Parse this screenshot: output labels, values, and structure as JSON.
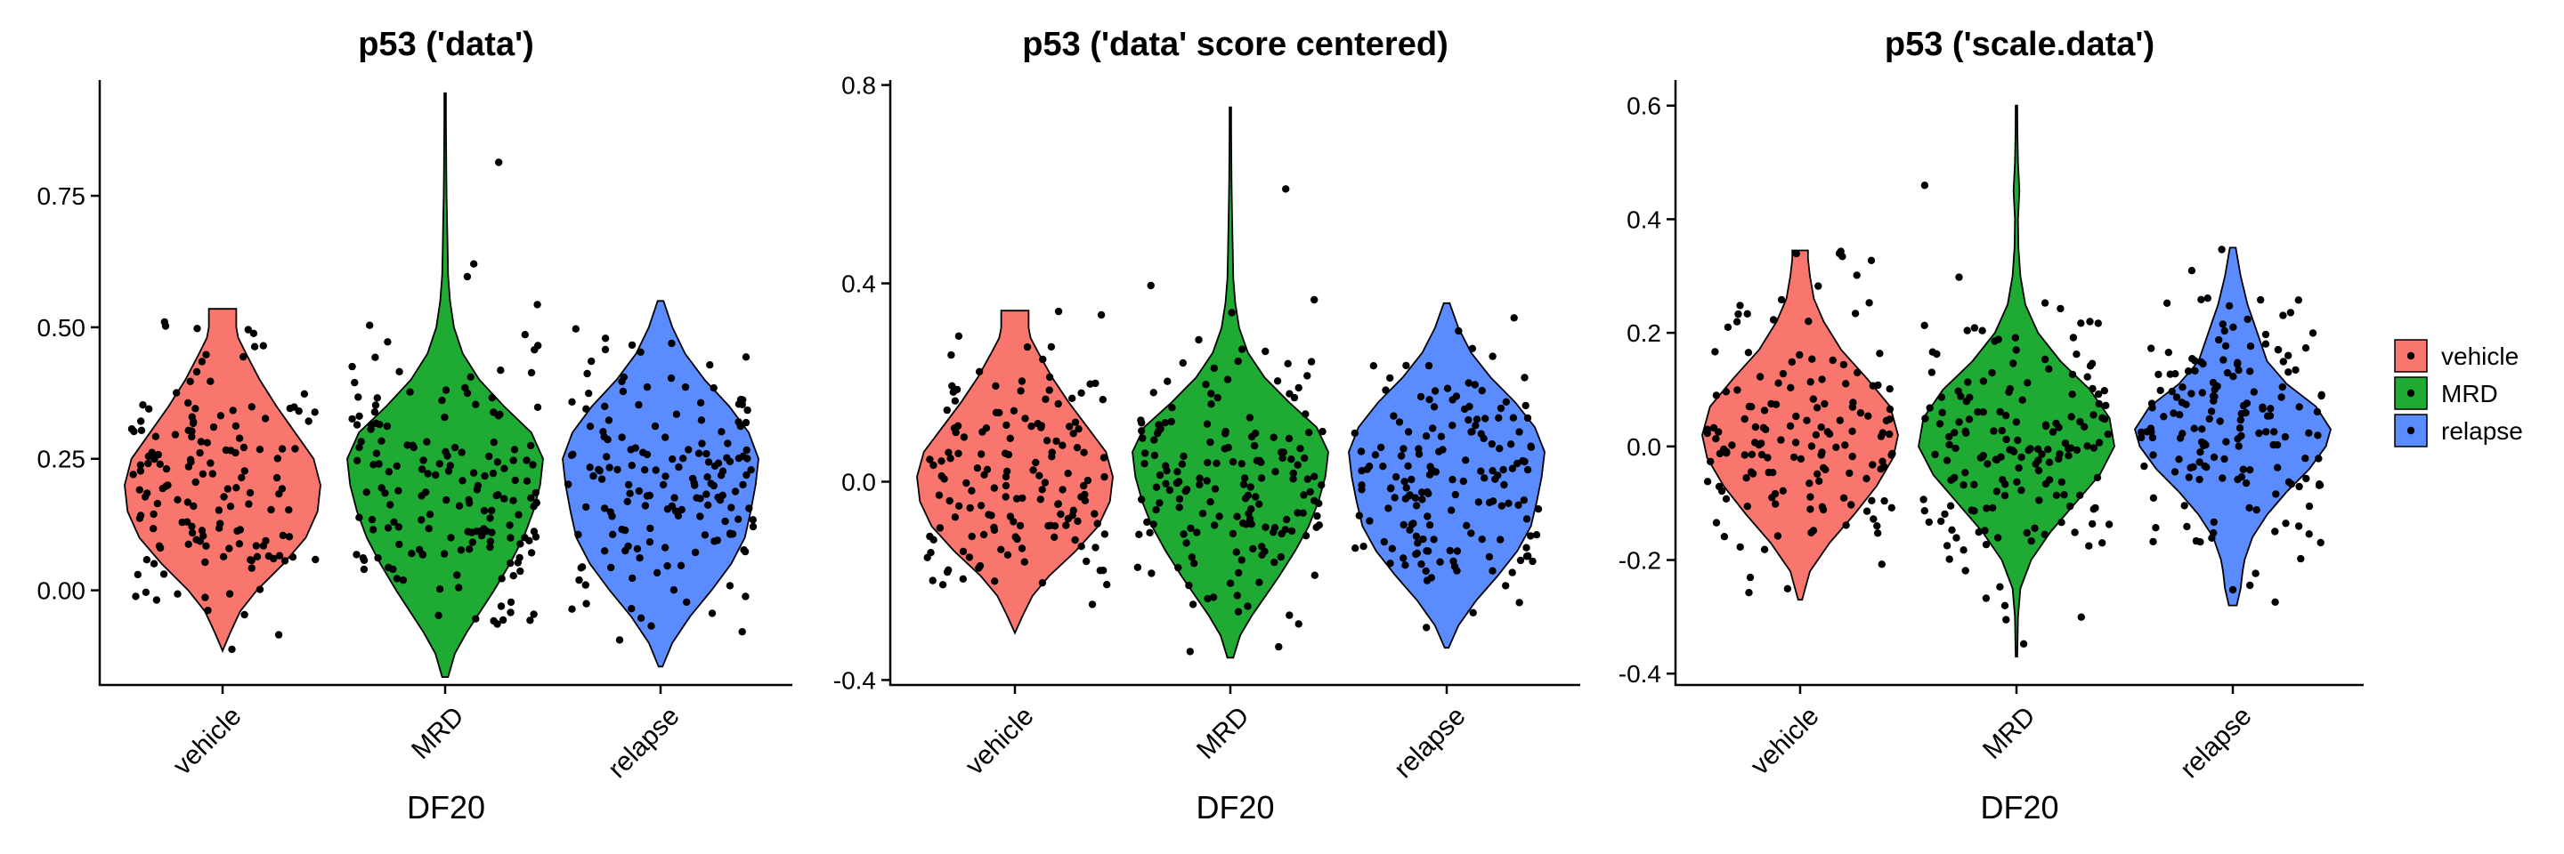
{
  "chart_data": [
    {
      "type": "violin",
      "title": "p53 ('data')",
      "xlabel": "DF20",
      "ylabel": "",
      "categories": [
        "vehicle",
        "MRD",
        "relapse"
      ],
      "colors": [
        "#F8766D",
        "#1FAA33",
        "#5B8CFF"
      ],
      "ylim": [
        -0.18,
        0.97
      ],
      "yticks": [
        0.0,
        0.25,
        0.5,
        0.75
      ],
      "ytick_labels": [
        "0.00",
        "0.25",
        "0.50",
        "0.75"
      ],
      "groups": [
        {
          "name": "vehicle",
          "min": -0.115,
          "max": 0.535,
          "n_points": 150,
          "density": [
            [
              -0.115,
              0.0
            ],
            [
              -0.08,
              0.08
            ],
            [
              -0.04,
              0.18
            ],
            [
              0.0,
              0.35
            ],
            [
              0.05,
              0.62
            ],
            [
              0.1,
              0.85
            ],
            [
              0.15,
              0.97
            ],
            [
              0.2,
              1.0
            ],
            [
              0.25,
              0.93
            ],
            [
              0.3,
              0.74
            ],
            [
              0.35,
              0.55
            ],
            [
              0.4,
              0.38
            ],
            [
              0.45,
              0.24
            ],
            [
              0.48,
              0.16
            ],
            [
              0.5,
              0.14
            ],
            [
              0.52,
              0.14
            ],
            [
              0.535,
              0.14
            ]
          ]
        },
        {
          "name": "MRD",
          "min": -0.165,
          "max": 0.945,
          "n_points": 170,
          "density": [
            [
              -0.165,
              0.03
            ],
            [
              -0.12,
              0.1
            ],
            [
              -0.08,
              0.22
            ],
            [
              -0.04,
              0.36
            ],
            [
              0.0,
              0.5
            ],
            [
              0.05,
              0.66
            ],
            [
              0.1,
              0.8
            ],
            [
              0.15,
              0.9
            ],
            [
              0.2,
              0.97
            ],
            [
              0.25,
              1.0
            ],
            [
              0.3,
              0.88
            ],
            [
              0.35,
              0.6
            ],
            [
              0.4,
              0.35
            ],
            [
              0.45,
              0.18
            ],
            [
              0.5,
              0.09
            ],
            [
              0.55,
              0.05
            ],
            [
              0.6,
              0.03
            ],
            [
              0.65,
              0.025
            ],
            [
              0.7,
              0.02
            ],
            [
              0.75,
              0.015
            ],
            [
              0.8,
              0.012
            ],
            [
              0.85,
              0.01
            ],
            [
              0.9,
              0.008
            ],
            [
              0.945,
              0.008
            ]
          ]
        },
        {
          "name": "relapse",
          "min": -0.145,
          "max": 0.55,
          "n_points": 165,
          "density": [
            [
              -0.145,
              0.02
            ],
            [
              -0.1,
              0.12
            ],
            [
              -0.05,
              0.3
            ],
            [
              0.0,
              0.52
            ],
            [
              0.05,
              0.72
            ],
            [
              0.1,
              0.86
            ],
            [
              0.15,
              0.92
            ],
            [
              0.2,
              0.97
            ],
            [
              0.25,
              1.0
            ],
            [
              0.3,
              0.9
            ],
            [
              0.35,
              0.7
            ],
            [
              0.4,
              0.45
            ],
            [
              0.45,
              0.25
            ],
            [
              0.5,
              0.12
            ],
            [
              0.55,
              0.03
            ]
          ]
        }
      ],
      "legend": "none"
    },
    {
      "type": "violin",
      "title": "p53 ('data' score centered)",
      "xlabel": "DF20",
      "ylabel": "",
      "categories": [
        "vehicle",
        "MRD",
        "relapse"
      ],
      "colors": [
        "#F8766D",
        "#1FAA33",
        "#5B8CFF"
      ],
      "ylim": [
        -0.41,
        0.81
      ],
      "yticks": [
        -0.4,
        0.0,
        0.4,
        0.8
      ],
      "ytick_labels": [
        "-0.4",
        "0.0",
        "0.4",
        "0.8"
      ],
      "groups": [
        {
          "name": "vehicle",
          "min": -0.305,
          "max": 0.345,
          "n_points": 150,
          "density": [
            [
              -0.305,
              0.0
            ],
            [
              -0.27,
              0.08
            ],
            [
              -0.23,
              0.18
            ],
            [
              -0.19,
              0.35
            ],
            [
              -0.14,
              0.62
            ],
            [
              -0.09,
              0.85
            ],
            [
              -0.04,
              0.97
            ],
            [
              0.01,
              1.0
            ],
            [
              0.06,
              0.93
            ],
            [
              0.11,
              0.74
            ],
            [
              0.16,
              0.55
            ],
            [
              0.21,
              0.38
            ],
            [
              0.26,
              0.24
            ],
            [
              0.29,
              0.16
            ],
            [
              0.31,
              0.14
            ],
            [
              0.33,
              0.14
            ],
            [
              0.345,
              0.14
            ]
          ]
        },
        {
          "name": "MRD",
          "min": -0.355,
          "max": 0.755,
          "n_points": 170,
          "density": [
            [
              -0.355,
              0.03
            ],
            [
              -0.31,
              0.1
            ],
            [
              -0.27,
              0.22
            ],
            [
              -0.23,
              0.36
            ],
            [
              -0.19,
              0.5
            ],
            [
              -0.14,
              0.66
            ],
            [
              -0.09,
              0.8
            ],
            [
              -0.04,
              0.9
            ],
            [
              0.01,
              0.97
            ],
            [
              0.06,
              1.0
            ],
            [
              0.11,
              0.88
            ],
            [
              0.16,
              0.6
            ],
            [
              0.21,
              0.35
            ],
            [
              0.26,
              0.18
            ],
            [
              0.31,
              0.09
            ],
            [
              0.36,
              0.05
            ],
            [
              0.41,
              0.03
            ],
            [
              0.46,
              0.025
            ],
            [
              0.51,
              0.02
            ],
            [
              0.56,
              0.015
            ],
            [
              0.61,
              0.012
            ],
            [
              0.66,
              0.01
            ],
            [
              0.71,
              0.008
            ],
            [
              0.755,
              0.008
            ]
          ]
        },
        {
          "name": "relapse",
          "min": -0.335,
          "max": 0.36,
          "n_points": 165,
          "density": [
            [
              -0.335,
              0.02
            ],
            [
              -0.29,
              0.12
            ],
            [
              -0.24,
              0.3
            ],
            [
              -0.19,
              0.52
            ],
            [
              -0.14,
              0.72
            ],
            [
              -0.09,
              0.86
            ],
            [
              -0.04,
              0.92
            ],
            [
              0.01,
              0.97
            ],
            [
              0.06,
              1.0
            ],
            [
              0.11,
              0.9
            ],
            [
              0.16,
              0.7
            ],
            [
              0.21,
              0.45
            ],
            [
              0.26,
              0.25
            ],
            [
              0.31,
              0.12
            ],
            [
              0.36,
              0.03
            ]
          ]
        }
      ],
      "legend": "none"
    },
    {
      "type": "violin",
      "title": "p53 ('scale.data')",
      "xlabel": "DF20",
      "ylabel": "",
      "categories": [
        "vehicle",
        "MRD",
        "relapse"
      ],
      "colors": [
        "#F8766D",
        "#1FAA33",
        "#5B8CFF"
      ],
      "ylim": [
        -0.42,
        0.645
      ],
      "yticks": [
        -0.4,
        -0.2,
        0.0,
        0.2,
        0.4,
        0.6
      ],
      "ytick_labels": [
        "-0.4",
        "-0.2",
        "0.0",
        "0.2",
        "0.4",
        "0.6"
      ],
      "groups": [
        {
          "name": "vehicle",
          "min": -0.27,
          "max": 0.345,
          "n_points": 150,
          "density": [
            [
              -0.27,
              0.02
            ],
            [
              -0.22,
              0.1
            ],
            [
              -0.17,
              0.3
            ],
            [
              -0.12,
              0.55
            ],
            [
              -0.07,
              0.78
            ],
            [
              -0.02,
              0.95
            ],
            [
              0.02,
              1.0
            ],
            [
              0.07,
              0.92
            ],
            [
              0.12,
              0.68
            ],
            [
              0.17,
              0.42
            ],
            [
              0.22,
              0.24
            ],
            [
              0.26,
              0.14
            ],
            [
              0.3,
              0.1
            ],
            [
              0.33,
              0.08
            ],
            [
              0.345,
              0.08
            ]
          ]
        },
        {
          "name": "MRD",
          "min": -0.37,
          "max": 0.6,
          "n_points": 170,
          "density": [
            [
              -0.37,
              0.008
            ],
            [
              -0.3,
              0.015
            ],
            [
              -0.25,
              0.04
            ],
            [
              -0.2,
              0.15
            ],
            [
              -0.15,
              0.35
            ],
            [
              -0.1,
              0.6
            ],
            [
              -0.05,
              0.85
            ],
            [
              0.0,
              1.0
            ],
            [
              0.05,
              0.95
            ],
            [
              0.1,
              0.75
            ],
            [
              0.15,
              0.45
            ],
            [
              0.2,
              0.22
            ],
            [
              0.25,
              0.09
            ],
            [
              0.3,
              0.04
            ],
            [
              0.35,
              0.02
            ],
            [
              0.4,
              0.015
            ],
            [
              0.45,
              0.03
            ],
            [
              0.5,
              0.015
            ],
            [
              0.55,
              0.01
            ],
            [
              0.6,
              0.008
            ]
          ]
        },
        {
          "name": "relapse",
          "min": -0.28,
          "max": 0.35,
          "n_points": 165,
          "density": [
            [
              -0.28,
              0.04
            ],
            [
              -0.25,
              0.08
            ],
            [
              -0.22,
              0.1
            ],
            [
              -0.2,
              0.12
            ],
            [
              -0.16,
              0.2
            ],
            [
              -0.12,
              0.35
            ],
            [
              -0.08,
              0.55
            ],
            [
              -0.04,
              0.78
            ],
            [
              0.0,
              0.95
            ],
            [
              0.03,
              1.0
            ],
            [
              0.07,
              0.85
            ],
            [
              0.11,
              0.55
            ],
            [
              0.15,
              0.35
            ],
            [
              0.2,
              0.25
            ],
            [
              0.25,
              0.15
            ],
            [
              0.3,
              0.08
            ],
            [
              0.35,
              0.03
            ]
          ]
        }
      ],
      "legend": "right"
    }
  ],
  "legend": {
    "entries": [
      {
        "label": "vehicle",
        "color": "#F8766D"
      },
      {
        "label": "MRD",
        "color": "#1FAA33"
      },
      {
        "label": "relapse",
        "color": "#5B8CFF"
      }
    ]
  }
}
